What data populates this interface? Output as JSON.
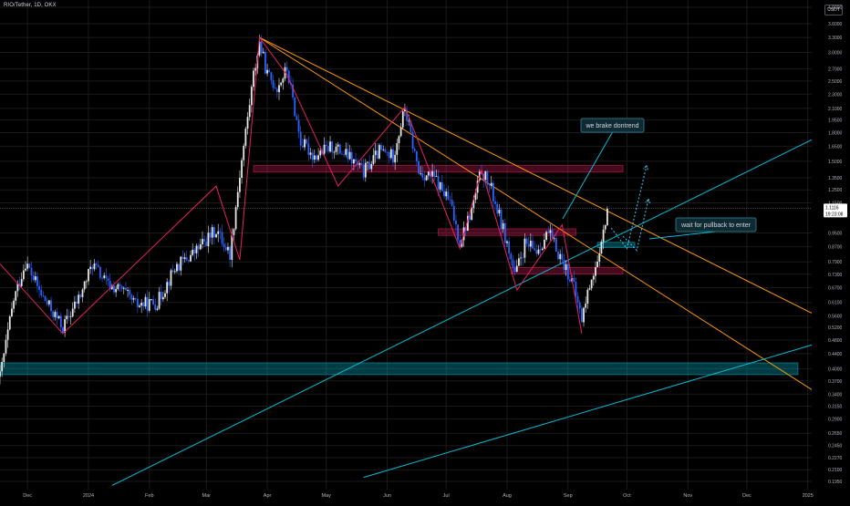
{
  "header": {
    "symbol": "RIO/Tether, 1D, OKX",
    "currency": "USDT"
  },
  "colors": {
    "background": "#000000",
    "up_candle": "#e6e6e6",
    "down_candle": "#2962ff",
    "zigzag": "#e91e63",
    "orange_line": "#ff9800",
    "teal_line": "#00bcd4",
    "grid": "#1a1a1a",
    "axis_text": "#b2b5be"
  },
  "annotations": {
    "note1": "we brake dontrend",
    "note2": "wait for pullback to enter"
  },
  "price_label": {
    "price": "1.1116",
    "countdown": "19:23:08"
  },
  "chart_data": {
    "type": "candlestick",
    "title": "RIO/Tether, 1D, OKX",
    "y_scale": "log",
    "ylim": [
      0.195,
      4.0
    ],
    "y_ticks": [
      "4.0000",
      "3.6000",
      "3.3000",
      "3.0000",
      "2.7000",
      "2.5000",
      "2.3000",
      "2.1000",
      "1.9500",
      "1.8000",
      "1.6500",
      "1.5000",
      "1.3500",
      "1.2500",
      "1.1500",
      "0.9500",
      "0.8700",
      "0.7900",
      "0.7300",
      "0.6700",
      "0.6100",
      "0.5600",
      "0.5200",
      "0.4800",
      "0.4400",
      "0.4000",
      "0.3700",
      "0.3400",
      "0.3150",
      "0.2900",
      "0.2650",
      "0.2450",
      "0.2270",
      "0.2100",
      "0.1950"
    ],
    "x_ticks": [
      "Dec",
      "2024",
      "Feb",
      "Mar",
      "Apr",
      "May",
      "Jun",
      "Jul",
      "Aug",
      "Sep",
      "Oct",
      "Nov",
      "Dec",
      "2025"
    ],
    "x_range": [
      "2023-11-17",
      "2025-01-03"
    ],
    "price_path": [
      [
        "2023-11-17",
        0.38
      ],
      [
        "2023-11-24",
        0.62
      ],
      [
        "2023-11-30",
        0.79
      ],
      [
        "2023-12-08",
        0.64
      ],
      [
        "2023-12-19",
        0.52
      ],
      [
        "2023-12-28",
        0.64
      ],
      [
        "2024-01-03",
        0.78
      ],
      [
        "2024-01-11",
        0.68
      ],
      [
        "2024-01-18",
        0.66
      ],
      [
        "2024-01-25",
        0.6
      ],
      [
        "2024-02-05",
        0.61
      ],
      [
        "2024-02-14",
        0.76
      ],
      [
        "2024-02-24",
        0.84
      ],
      [
        "2024-03-06",
        0.97
      ],
      [
        "2024-03-13",
        0.83
      ],
      [
        "2024-03-18",
        1.38
      ],
      [
        "2024-03-25",
        2.6
      ],
      [
        "2024-03-28",
        3.2
      ],
      [
        "2024-04-01",
        2.6
      ],
      [
        "2024-04-06",
        2.4
      ],
      [
        "2024-04-11",
        2.7
      ],
      [
        "2024-04-18",
        1.7
      ],
      [
        "2024-04-25",
        1.55
      ],
      [
        "2024-05-04",
        1.65
      ],
      [
        "2024-05-12",
        1.55
      ],
      [
        "2024-05-20",
        1.4
      ],
      [
        "2024-05-28",
        1.6
      ],
      [
        "2024-06-04",
        1.55
      ],
      [
        "2024-06-10",
        2.1
      ],
      [
        "2024-06-17",
        1.4
      ],
      [
        "2024-06-25",
        1.35
      ],
      [
        "2024-07-03",
        1.15
      ],
      [
        "2024-07-08",
        0.9
      ],
      [
        "2024-07-14",
        1.1
      ],
      [
        "2024-07-19",
        1.42
      ],
      [
        "2024-07-24",
        1.25
      ],
      [
        "2024-07-31",
        0.93
      ],
      [
        "2024-08-05",
        0.72
      ],
      [
        "2024-08-10",
        0.88
      ],
      [
        "2024-08-16",
        0.85
      ],
      [
        "2024-08-22",
        0.95
      ],
      [
        "2024-08-28",
        0.82
      ],
      [
        "2024-09-03",
        0.7
      ],
      [
        "2024-09-08",
        0.55
      ],
      [
        "2024-09-13",
        0.72
      ],
      [
        "2024-09-17",
        0.8
      ],
      [
        "2024-09-21",
        1.12
      ]
    ],
    "zigzag": [
      [
        "2023-11-17",
        0.78
      ],
      [
        "2023-12-19",
        0.5
      ],
      [
        "2024-03-06",
        1.28
      ],
      [
        "2024-03-18",
        0.8
      ],
      [
        "2024-03-28",
        3.3
      ],
      [
        "2024-04-11",
        2.6
      ],
      [
        "2024-05-07",
        1.28
      ],
      [
        "2024-06-10",
        2.12
      ],
      [
        "2024-07-08",
        0.86
      ],
      [
        "2024-07-19",
        1.42
      ],
      [
        "2024-08-06",
        0.66
      ],
      [
        "2024-08-29",
        1.0
      ],
      [
        "2024-09-08",
        0.5
      ]
    ],
    "trendlines_orange": [
      [
        [
          "2024-03-28",
          3.3
        ],
        [
          "2025-01-03",
          0.57
        ]
      ],
      [
        [
          "2024-03-28",
          3.3
        ],
        [
          "2025-01-03",
          0.35
        ]
      ]
    ],
    "trendlines_teal": [
      [
        [
          "2024-01-13",
          0.19
        ],
        [
          "2025-01-03",
          1.72
        ]
      ],
      [
        [
          "2024-05-20",
          0.2
        ],
        [
          "2025-01-03",
          0.465
        ]
      ]
    ],
    "zones_red": [
      {
        "start": "2024-03-25",
        "end": "2024-09-29",
        "top": 1.46,
        "bottom": 1.4
      },
      {
        "start": "2024-06-27",
        "end": "2024-09-05",
        "top": 0.975,
        "bottom": 0.935
      },
      {
        "start": "2024-08-03",
        "end": "2024-09-29",
        "top": 0.762,
        "bottom": 0.732
      }
    ],
    "zones_teal": [
      {
        "start": "2023-11-17",
        "end": "2024-12-27",
        "top": 0.415,
        "bottom": 0.385
      },
      {
        "start": "2024-09-16",
        "end": "2024-10-05",
        "top": 0.895,
        "bottom": 0.865
      }
    ],
    "projection_1": [
      [
        "2024-09-23",
        0.98
      ],
      [
        "2024-10-01",
        0.86
      ],
      [
        "2024-10-11",
        1.46
      ]
    ],
    "projection_2": [
      [
        "2024-09-29",
        0.93
      ],
      [
        "2024-10-06",
        0.85
      ],
      [
        "2024-10-12",
        1.18
      ]
    ],
    "last_price": 1.1116
  }
}
